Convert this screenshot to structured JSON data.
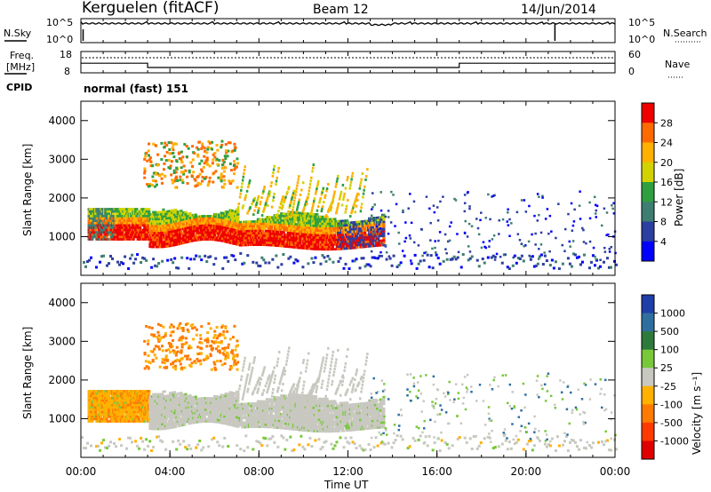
{
  "header": {
    "station": "Kerguelen (fitACF)",
    "beam": "Beam 12",
    "date": "14/Jun/2014"
  },
  "left_labels": {
    "nsky": "N.Sky",
    "freq_line1": "Freq.",
    "freq_line2": "[MHz]",
    "cpid": "CPID"
  },
  "right_labels": {
    "nsearch": "N.Search",
    "nave": "Nave"
  },
  "cpid_text": "normal (fast) 151",
  "chart_data": [
    {
      "type": "line",
      "name": "noise-panel",
      "x_ticks": [
        "00:00",
        "04:00",
        "08:00",
        "12:00",
        "16:00",
        "20:00",
        "00:00"
      ],
      "left_ticks": [
        "10^5",
        "10^0"
      ],
      "right_ticks": [
        "10^5",
        "10^0"
      ],
      "sky_noise_level": 0.8,
      "search_noise": "dotted"
    },
    {
      "type": "line",
      "name": "freq-nave-panel",
      "left_ticks": [
        "18",
        "8"
      ],
      "right_ticks": [
        "60",
        "0"
      ],
      "freq_mhz": [
        {
          "t": 0.0,
          "v": 12.5
        },
        {
          "t": 3.0,
          "v": 12.5
        },
        {
          "t": 3.0,
          "v": 10.5
        },
        {
          "t": 17.0,
          "v": 10.5
        },
        {
          "t": 17.0,
          "v": 12.5
        },
        {
          "t": 24.0,
          "v": 12.5
        }
      ],
      "nave": "dotted"
    },
    {
      "type": "heatmap",
      "name": "power-panel",
      "xlabel": "",
      "ylabel": "Slant Range [km]",
      "xlim": [
        0,
        24
      ],
      "ylim": [
        0,
        4500
      ],
      "y_ticks": [
        "1000",
        "2000",
        "3000",
        "4000"
      ],
      "colorbar_label": "Power [dB]",
      "colorbar_ticks": [
        "28",
        "24",
        "20",
        "16",
        "12",
        "8",
        "4"
      ],
      "colors": [
        "#ee0000",
        "#ff6a00",
        "#ffb000",
        "#d2d200",
        "#2fa040",
        "#3e7e72",
        "#2c3ea0",
        "#0000ff"
      ]
    },
    {
      "type": "heatmap",
      "name": "velocity-panel",
      "xlabel": "Time UT",
      "ylabel": "Slant Range [km]",
      "xlim": [
        0,
        24
      ],
      "ylim": [
        0,
        4500
      ],
      "x_ticks": [
        "00:00",
        "04:00",
        "08:00",
        "12:00",
        "16:00",
        "20:00",
        "00:00"
      ],
      "y_ticks": [
        "1000",
        "2000",
        "3000",
        "4000"
      ],
      "colorbar_label": "Velocity [m s⁻¹]",
      "colorbar_ticks": [
        "1000",
        "500",
        "100",
        "25",
        "-25",
        "-100",
        "-500",
        "-1000"
      ],
      "colors": [
        "#1f3ea8",
        "#2f6fa0",
        "#2e7a3c",
        "#78c83a",
        "#c8c8c0",
        "#ffb000",
        "#ff7a00",
        "#ff3a00",
        "#e00000"
      ]
    }
  ]
}
